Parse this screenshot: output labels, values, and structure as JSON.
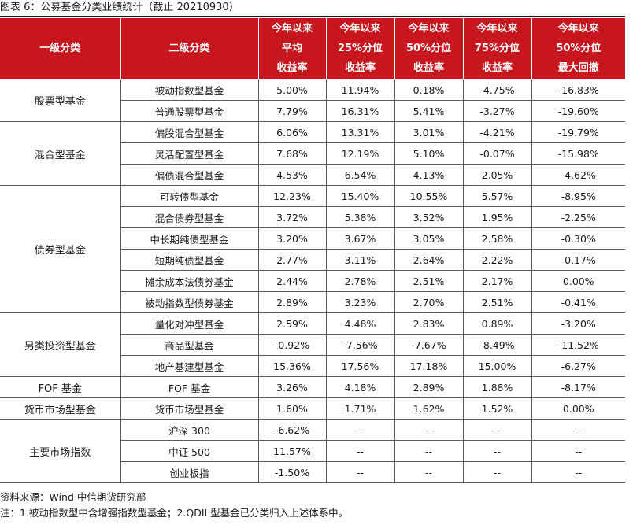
{
  "title": "图表 6：公募基金分类业绩统计（截止 20210930）",
  "headers": {
    "level1": "一级分类",
    "level2": "二级分类",
    "avg": [
      "今年以来",
      "平均",
      "收益率"
    ],
    "p25": [
      "今年以来",
      "25%分位",
      "收益率"
    ],
    "p50": [
      "今年以来",
      "50%分位",
      "收益率"
    ],
    "p75": [
      "今年以来",
      "75%分位",
      "收益率"
    ],
    "mdd": [
      "今年以来",
      "50%分位",
      "最大回撤"
    ]
  },
  "groups": [
    {
      "name": "股票型基金",
      "rows": [
        {
          "sub": "被动指数型基金",
          "vals": [
            "5.00%",
            "11.94%",
            "0.18%",
            "-4.75%",
            "-16.83%"
          ]
        },
        {
          "sub": "普通股票型基金",
          "vals": [
            "7.79%",
            "16.31%",
            "5.41%",
            "-3.27%",
            "-19.60%"
          ]
        }
      ]
    },
    {
      "name": "混合型基金",
      "rows": [
        {
          "sub": "偏股混合型基金",
          "vals": [
            "6.06%",
            "13.31%",
            "3.01%",
            "-4.21%",
            "-19.79%"
          ]
        },
        {
          "sub": "灵活配置型基金",
          "vals": [
            "7.68%",
            "12.19%",
            "5.10%",
            "-0.07%",
            "-15.98%"
          ]
        },
        {
          "sub": "偏债混合型基金",
          "vals": [
            "4.53%",
            "6.54%",
            "4.13%",
            "2.05%",
            "-4.62%"
          ]
        }
      ]
    },
    {
      "name": "债券型基金",
      "rows": [
        {
          "sub": "可转债型基金",
          "vals": [
            "12.23%",
            "15.40%",
            "10.55%",
            "5.57%",
            "-8.95%"
          ]
        },
        {
          "sub": "混合债券型基金",
          "vals": [
            "3.72%",
            "5.38%",
            "3.52%",
            "1.95%",
            "-2.25%"
          ]
        },
        {
          "sub": "中长期纯债型基金",
          "vals": [
            "3.20%",
            "3.67%",
            "3.05%",
            "2.58%",
            "-0.30%"
          ]
        },
        {
          "sub": "短期纯债型基金",
          "vals": [
            "2.77%",
            "3.11%",
            "2.64%",
            "2.22%",
            "-0.17%"
          ]
        },
        {
          "sub": "摊余成本法债券基金",
          "vals": [
            "2.44%",
            "2.78%",
            "2.51%",
            "2.17%",
            "0.00%"
          ]
        },
        {
          "sub": "被动指数型债券基金",
          "vals": [
            "2.89%",
            "3.23%",
            "2.70%",
            "2.51%",
            "-0.41%"
          ]
        }
      ]
    },
    {
      "name": "另类投资型基金",
      "rows": [
        {
          "sub": "量化对冲型基金",
          "vals": [
            "2.59%",
            "4.48%",
            "2.83%",
            "0.89%",
            "-3.20%"
          ]
        },
        {
          "sub": "商品型基金",
          "vals": [
            "-0.92%",
            "-7.56%",
            "-7.67%",
            "-8.49%",
            "-11.52%"
          ]
        },
        {
          "sub": "地产基建型基金",
          "vals": [
            "15.36%",
            "17.56%",
            "17.18%",
            "15.00%",
            "-6.27%"
          ]
        }
      ]
    },
    {
      "name": "FOF 基金",
      "rows": [
        {
          "sub": "FOF 基金",
          "vals": [
            "3.26%",
            "4.18%",
            "2.89%",
            "1.88%",
            "-8.17%"
          ]
        }
      ]
    },
    {
      "name": "货币市场型基金",
      "rows": [
        {
          "sub": "货币市场型基金",
          "vals": [
            "1.60%",
            "1.71%",
            "1.62%",
            "1.52%",
            "0.00%"
          ]
        }
      ]
    },
    {
      "name": "主要市场指数",
      "rows": [
        {
          "sub": "沪深 300",
          "vals": [
            "-6.62%",
            "--",
            "--",
            "--",
            "--"
          ]
        },
        {
          "sub": "中证 500",
          "vals": [
            "11.57%",
            "--",
            "--",
            "--",
            "--"
          ]
        },
        {
          "sub": "创业板指",
          "vals": [
            "-1.50%",
            "--",
            "--",
            "--",
            "--"
          ]
        }
      ]
    }
  ],
  "source": "资料来源：Wind 中信期货研究部",
  "note": "注：1.被动指数型中含增强指数型基金；2.QDII 型基金已分类归入上述体系中。",
  "colors": {
    "header_bg": "#c8161e",
    "header_text": "#ffffff",
    "border": "#5a5a5a"
  }
}
